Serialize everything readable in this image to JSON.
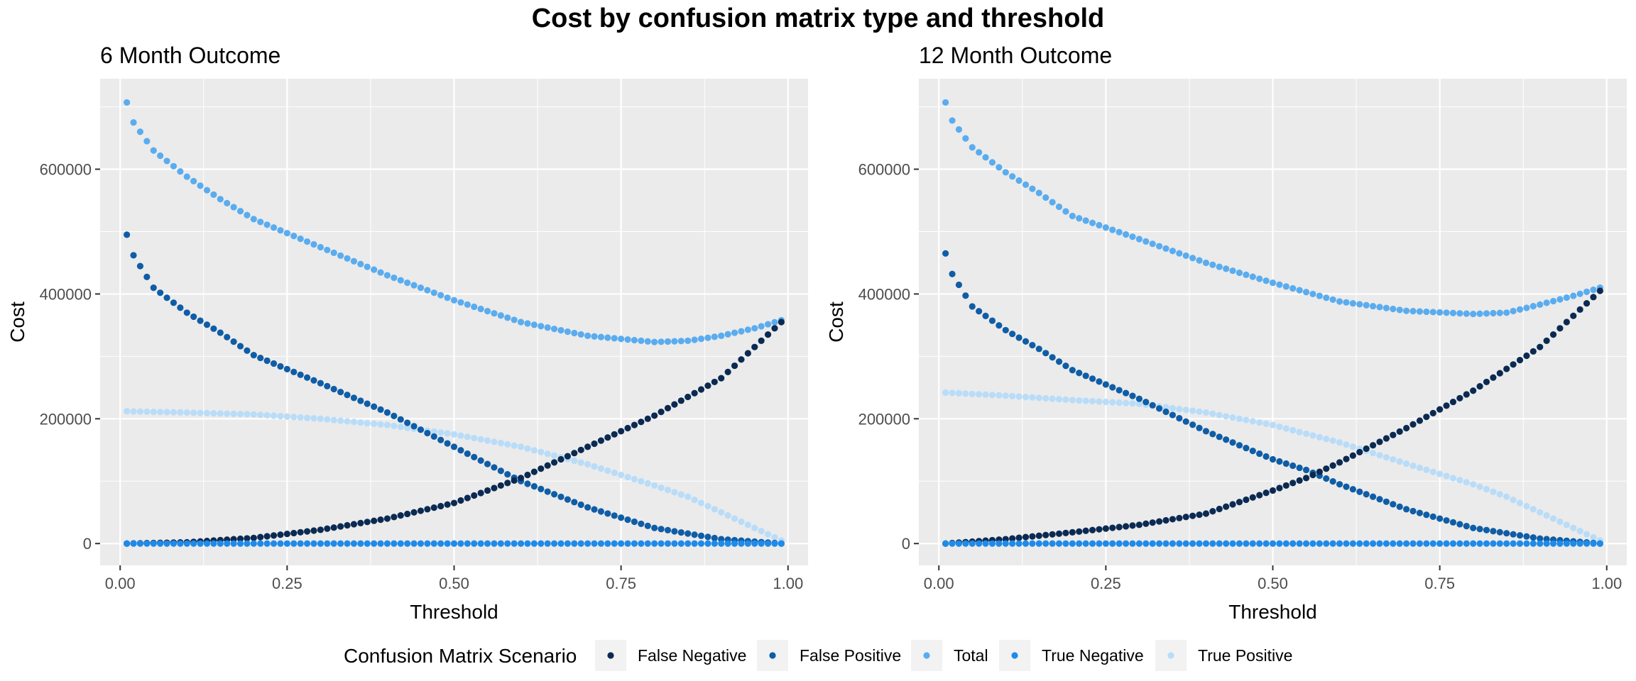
{
  "title": "Cost by confusion matrix type and threshold",
  "legend": {
    "title": "Confusion Matrix Scenario",
    "position": "bottom"
  },
  "colors": {
    "False Negative": "#0b2a52",
    "False Positive": "#0f5da6",
    "Total": "#5aacef",
    "True Negative": "#1f8ae8",
    "True Positive": "#b9dcf8",
    "panel_background": "#ebebeb",
    "grid": "#ffffff"
  },
  "chart_data": [
    {
      "type": "scatter",
      "title": "6 Month Outcome",
      "xlabel": "Threshold",
      "ylabel": "Cost",
      "xlim": [
        -0.03,
        1.03
      ],
      "ylim": [
        -35000,
        745000
      ],
      "x_ticks": [
        0,
        0.25,
        0.5,
        0.75,
        1
      ],
      "x_tick_labels": [
        "0.00",
        "0.25",
        "0.50",
        "0.75",
        "1.00"
      ],
      "y_ticks": [
        0,
        200000,
        400000,
        600000
      ],
      "y_tick_labels": [
        "0",
        "200000",
        "400000",
        "600000"
      ],
      "grid": true,
      "x_range": {
        "from": 0.01,
        "to": 0.99,
        "step": 0.01
      },
      "series": [
        {
          "name": "False Negative",
          "anchors": [
            [
              0.01,
              0
            ],
            [
              0.1,
              2000
            ],
            [
              0.2,
              9000
            ],
            [
              0.3,
              22000
            ],
            [
              0.4,
              40000
            ],
            [
              0.5,
              65000
            ],
            [
              0.6,
              105000
            ],
            [
              0.7,
              155000
            ],
            [
              0.8,
              205000
            ],
            [
              0.9,
              265000
            ],
            [
              0.99,
              355000
            ]
          ]
        },
        {
          "name": "False Positive",
          "anchors": [
            [
              0.01,
              495000
            ],
            [
              0.02,
              462000
            ],
            [
              0.05,
              410000
            ],
            [
              0.1,
              370000
            ],
            [
              0.15,
              338000
            ],
            [
              0.2,
              302000
            ],
            [
              0.3,
              257000
            ],
            [
              0.4,
              210000
            ],
            [
              0.5,
              155000
            ],
            [
              0.6,
              100000
            ],
            [
              0.7,
              58000
            ],
            [
              0.8,
              25000
            ],
            [
              0.9,
              7000
            ],
            [
              0.99,
              0
            ]
          ]
        },
        {
          "name": "Total",
          "anchors": [
            [
              0.01,
              707000
            ],
            [
              0.02,
              675000
            ],
            [
              0.05,
              630000
            ],
            [
              0.1,
              588000
            ],
            [
              0.15,
              552000
            ],
            [
              0.2,
              520000
            ],
            [
              0.3,
              475000
            ],
            [
              0.4,
              430000
            ],
            [
              0.5,
              390000
            ],
            [
              0.6,
              355000
            ],
            [
              0.7,
              333000
            ],
            [
              0.8,
              323000
            ],
            [
              0.85,
              325000
            ],
            [
              0.9,
              333000
            ],
            [
              0.95,
              345000
            ],
            [
              0.99,
              358000
            ]
          ]
        },
        {
          "name": "True Negative",
          "anchors": [
            [
              0.01,
              0
            ],
            [
              0.99,
              0
            ]
          ]
        },
        {
          "name": "True Positive",
          "anchors": [
            [
              0.01,
              212000
            ],
            [
              0.1,
              210000
            ],
            [
              0.2,
              207000
            ],
            [
              0.3,
              200000
            ],
            [
              0.4,
              190000
            ],
            [
              0.5,
              175000
            ],
            [
              0.6,
              155000
            ],
            [
              0.7,
              127000
            ],
            [
              0.8,
              93000
            ],
            [
              0.85,
              75000
            ],
            [
              0.9,
              50000
            ],
            [
              0.95,
              25000
            ],
            [
              0.99,
              5000
            ]
          ]
        }
      ]
    },
    {
      "type": "scatter",
      "title": "12 Month Outcome",
      "xlabel": "Threshold",
      "ylabel": "Cost",
      "xlim": [
        -0.03,
        1.03
      ],
      "ylim": [
        -35000,
        745000
      ],
      "x_ticks": [
        0,
        0.25,
        0.5,
        0.75,
        1
      ],
      "x_tick_labels": [
        "0.00",
        "0.25",
        "0.50",
        "0.75",
        "1.00"
      ],
      "y_ticks": [
        0,
        200000,
        400000,
        600000
      ],
      "y_tick_labels": [
        "0",
        "200000",
        "400000",
        "600000"
      ],
      "grid": true,
      "x_range": {
        "from": 0.01,
        "to": 0.99,
        "step": 0.01
      },
      "series": [
        {
          "name": "False Negative",
          "anchors": [
            [
              0.01,
              0
            ],
            [
              0.1,
              7000
            ],
            [
              0.2,
              18000
            ],
            [
              0.3,
              30000
            ],
            [
              0.4,
              48000
            ],
            [
              0.5,
              85000
            ],
            [
              0.55,
              105000
            ],
            [
              0.6,
              130000
            ],
            [
              0.7,
              185000
            ],
            [
              0.8,
              245000
            ],
            [
              0.9,
              315000
            ],
            [
              0.99,
              405000
            ]
          ]
        },
        {
          "name": "False Positive",
          "anchors": [
            [
              0.01,
              465000
            ],
            [
              0.02,
              432000
            ],
            [
              0.05,
              380000
            ],
            [
              0.1,
              342000
            ],
            [
              0.15,
              312000
            ],
            [
              0.2,
              278000
            ],
            [
              0.3,
              232000
            ],
            [
              0.4,
              180000
            ],
            [
              0.5,
              135000
            ],
            [
              0.55,
              118000
            ],
            [
              0.6,
              95000
            ],
            [
              0.7,
              55000
            ],
            [
              0.8,
              25000
            ],
            [
              0.9,
              8000
            ],
            [
              0.99,
              0
            ]
          ]
        },
        {
          "name": "Total",
          "anchors": [
            [
              0.01,
              707000
            ],
            [
              0.02,
              678000
            ],
            [
              0.05,
              635000
            ],
            [
              0.1,
              595000
            ],
            [
              0.15,
              562000
            ],
            [
              0.2,
              525000
            ],
            [
              0.3,
              488000
            ],
            [
              0.4,
              450000
            ],
            [
              0.5,
              418000
            ],
            [
              0.6,
              388000
            ],
            [
              0.7,
              373000
            ],
            [
              0.8,
              368000
            ],
            [
              0.85,
              370000
            ],
            [
              0.9,
              383000
            ],
            [
              0.95,
              397000
            ],
            [
              0.99,
              410000
            ]
          ]
        },
        {
          "name": "True Negative",
          "anchors": [
            [
              0.01,
              0
            ],
            [
              0.99,
              0
            ]
          ]
        },
        {
          "name": "True Positive",
          "anchors": [
            [
              0.01,
              242000
            ],
            [
              0.1,
              237000
            ],
            [
              0.2,
              230000
            ],
            [
              0.3,
              224000
            ],
            [
              0.4,
              210000
            ],
            [
              0.5,
              190000
            ],
            [
              0.6,
              162000
            ],
            [
              0.7,
              128000
            ],
            [
              0.8,
              95000
            ],
            [
              0.85,
              75000
            ],
            [
              0.9,
              50000
            ],
            [
              0.95,
              25000
            ],
            [
              0.99,
              5000
            ]
          ]
        }
      ]
    }
  ]
}
